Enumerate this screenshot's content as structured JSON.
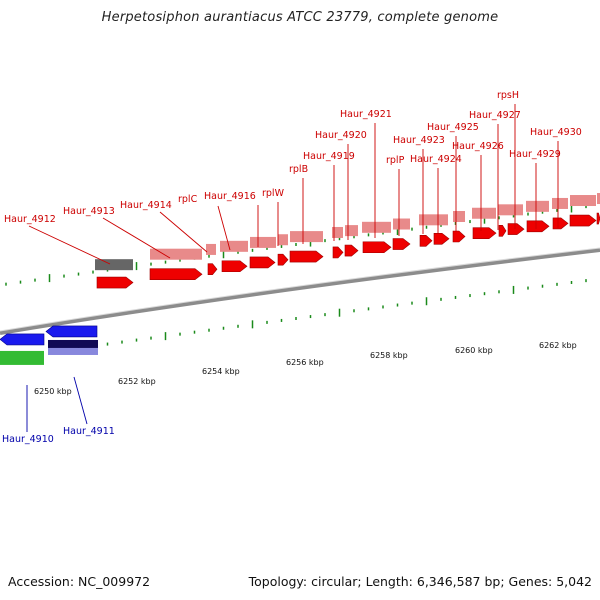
{
  "title": "Herpetosiphon aurantiacus ATCC 23779, complete genome",
  "footer": {
    "accession": "Accession: NC_009972",
    "summary": "Topology: circular; Length: 6,346,587 bp; Genes: 5,042"
  },
  "colors": {
    "forward_gene": "#ee0000",
    "forward_gene_light": "#e88a8a",
    "reverse_gene": "#1a1aee",
    "green_gene": "#33bb33",
    "dark_gene": "#666666",
    "tick": "#1a8a1a",
    "forward_label": "#cc0000",
    "reverse_label": "#0000aa",
    "backbone": "#8c8c8c"
  },
  "axis": {
    "ticks": [
      "6250 kbp",
      "6252 kbp",
      "6254 kbp",
      "6256 kbp",
      "6258 kbp",
      "6260 kbp",
      "6262 kbp"
    ]
  },
  "forward_labels": [
    "Haur_4912",
    "Haur_4913",
    "Haur_4914",
    "rplC",
    "Haur_4916",
    "rplW",
    "rplB",
    "Haur_4919",
    "Haur_4920",
    "Haur_4921",
    "rplP",
    "Haur_4923",
    "Haur_4924",
    "Haur_4925",
    "Haur_4926",
    "rpsH",
    "Haur_4927",
    "Haur_4929",
    "Haur_4930"
  ],
  "reverse_labels": [
    "Haur_4910",
    "Haur_4911"
  ]
}
